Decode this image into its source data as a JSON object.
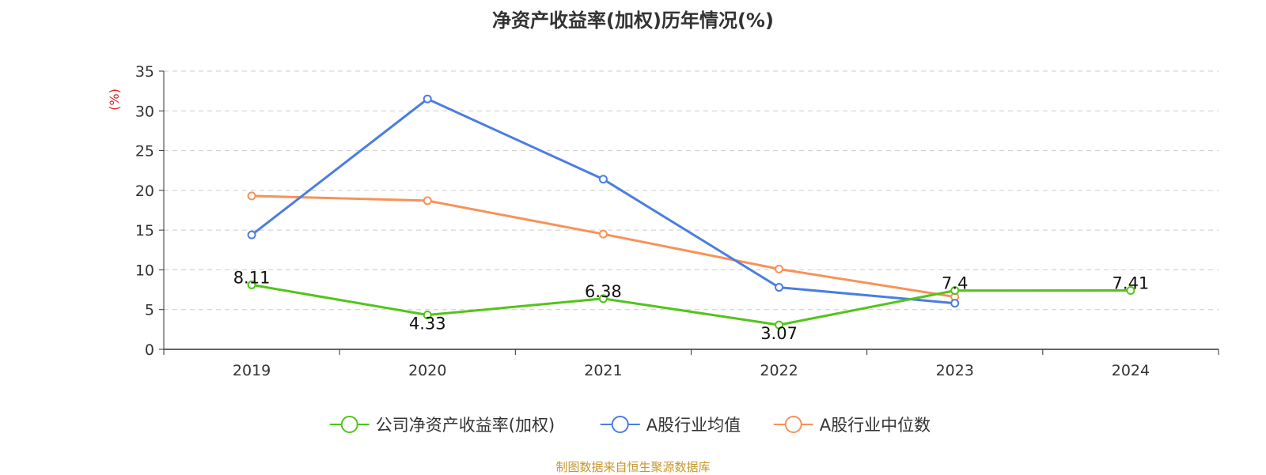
{
  "chart_data": {
    "type": "line",
    "title": "净资产收益率(加权)历年情况(%)",
    "ylabel": "(%)",
    "xlabel": "",
    "categories": [
      "2019",
      "2020",
      "2021",
      "2022",
      "2023",
      "2024"
    ],
    "ylim": [
      0,
      35
    ],
    "yticks": [
      "0",
      "5",
      "10",
      "15",
      "20",
      "25",
      "30",
      "35"
    ],
    "grid": true,
    "legend_position": "bottom",
    "series": [
      {
        "name": "公司净资产收益率(加权)",
        "color": "#52c41a",
        "values": [
          8.11,
          4.33,
          6.38,
          3.07,
          7.4,
          7.41
        ],
        "labels": [
          "8.11",
          "4.33",
          "6.38",
          "3.07",
          "7.4",
          "7.41"
        ]
      },
      {
        "name": "A股行业均值",
        "color": "#4a7ee0",
        "values": [
          14.4,
          31.5,
          21.4,
          7.8,
          5.8,
          null
        ]
      },
      {
        "name": "A股行业中位数",
        "color": "#f7925a",
        "values": [
          19.3,
          18.7,
          14.5,
          10.1,
          6.6,
          null
        ]
      }
    ]
  },
  "footer": {
    "source": "制图数据来自恒生聚源数据库"
  }
}
